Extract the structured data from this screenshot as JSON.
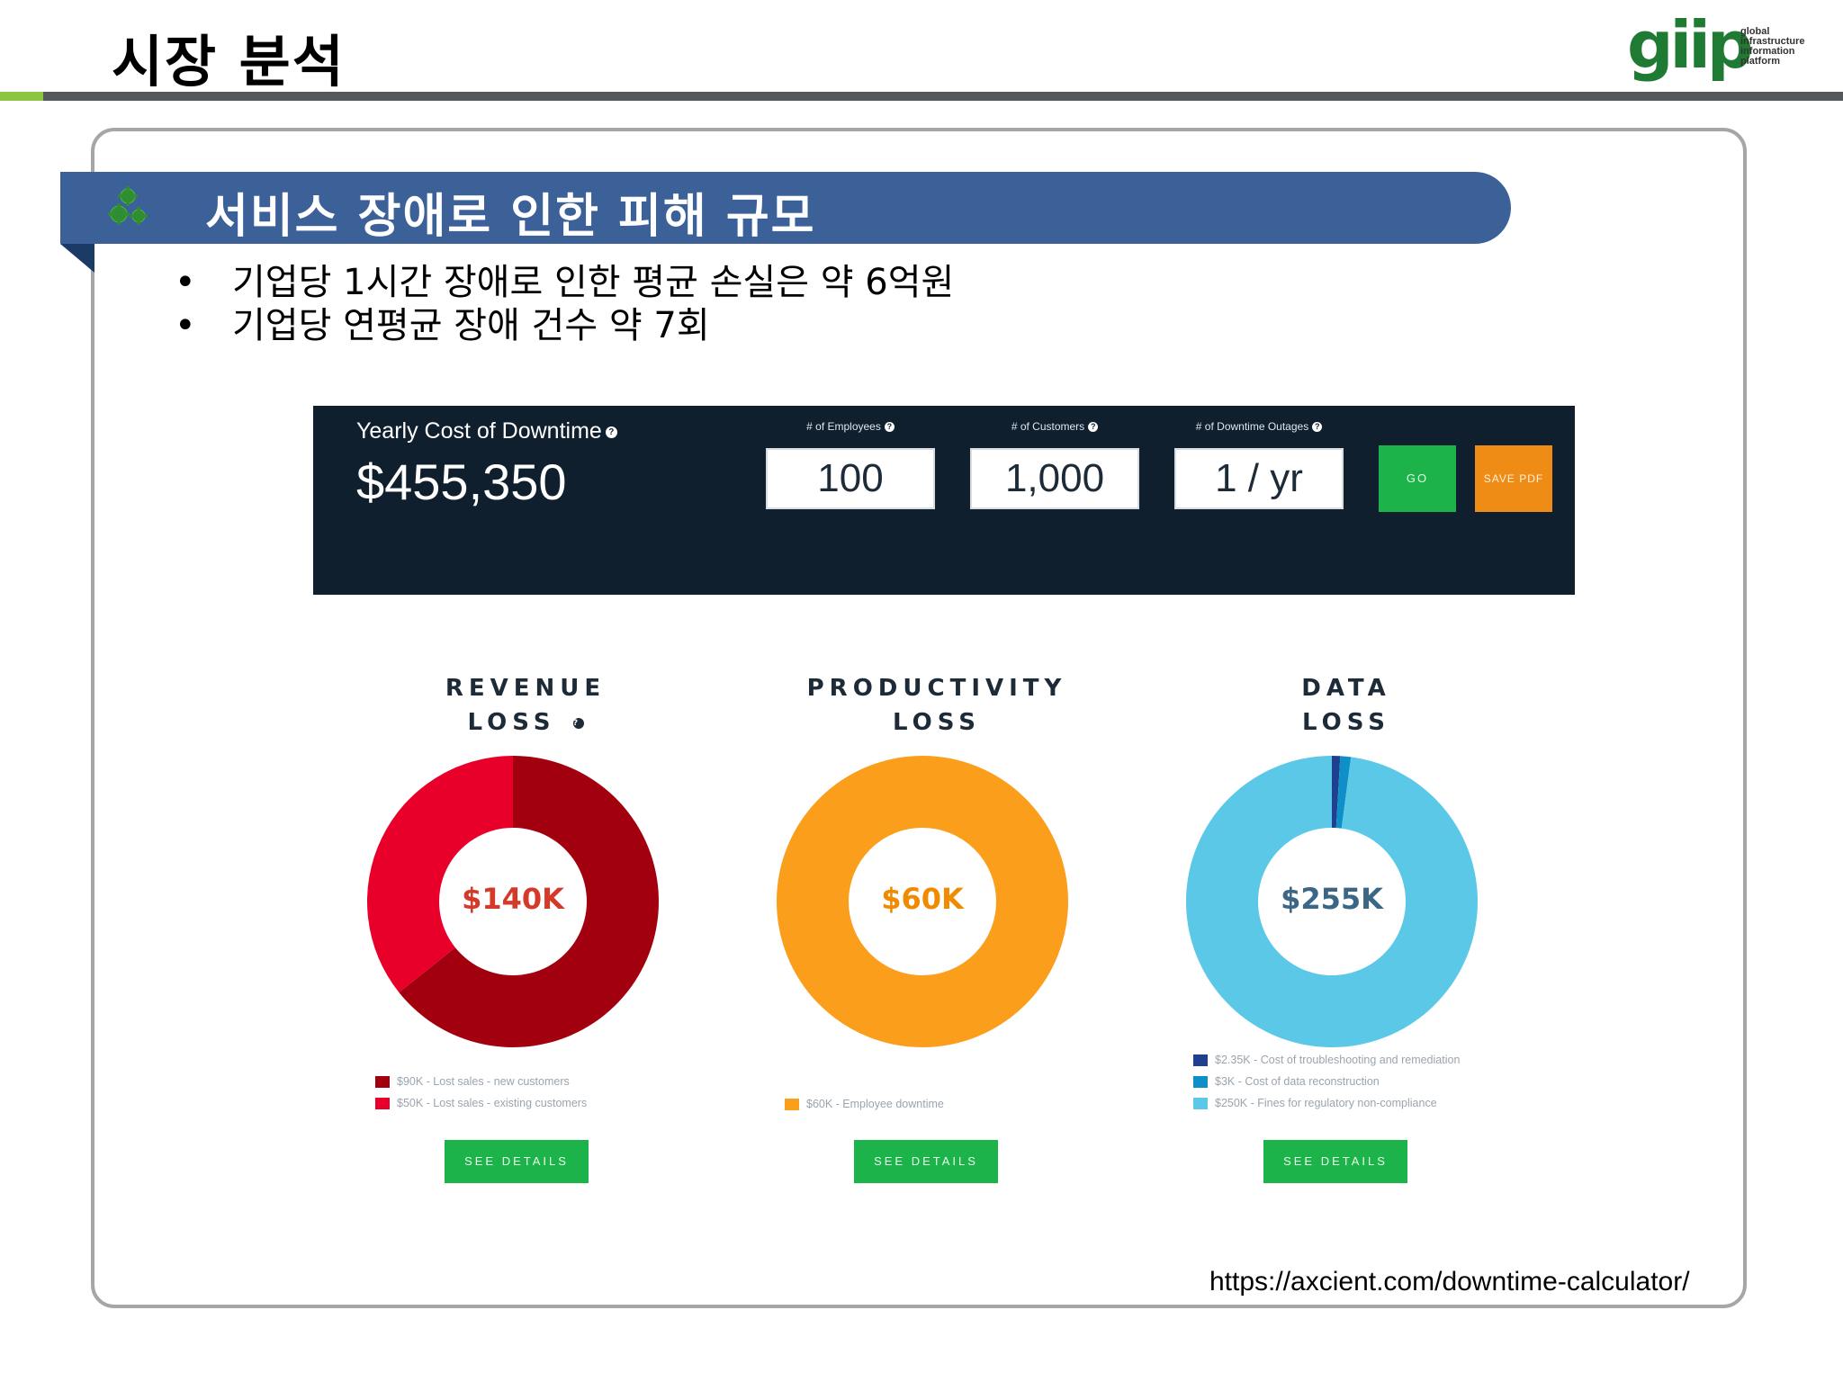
{
  "header": {
    "title": "시장 분석",
    "logo_word": "giip",
    "logo_tagline": [
      "global",
      "infrastructure",
      "information",
      "platform"
    ]
  },
  "section": {
    "title": "서비스 장애로 인한 피해 규모",
    "bullets": [
      "기업당 1시간 장애로 인한 평균 손실은 약 6억원",
      "기업당 연평균 장애 건수 약 7회"
    ]
  },
  "calculator": {
    "label": "Yearly Cost of Downtime",
    "total": "$455,350",
    "fields": [
      {
        "label": "# of Employees",
        "value": "100"
      },
      {
        "label": "# of Customers",
        "value": "1,000"
      },
      {
        "label": "# of Downtime Outages",
        "value": "1 / yr"
      }
    ],
    "go_label": "GO",
    "pdf_label": "SAVE PDF",
    "help_glyph": "?"
  },
  "chart_data": [
    {
      "type": "pie",
      "title_lines": [
        "REVENUE",
        "LOSS"
      ],
      "center_label": "$140K",
      "center_color": "#d43a2a",
      "slices": [
        {
          "label": "$90K - Lost sales - new customers",
          "value": 90,
          "color": "#a3000f"
        },
        {
          "label": "$50K - Lost sales - existing customers",
          "value": 50,
          "color": "#e8002a"
        }
      ],
      "button": "SEE DETAILS"
    },
    {
      "type": "pie",
      "title_lines": [
        "PRODUCTIVITY",
        "LOSS"
      ],
      "center_label": "$60K",
      "center_color": "#f08a00",
      "slices": [
        {
          "label": "$60K - Employee downtime",
          "value": 60,
          "color": "#fa9e1c"
        }
      ],
      "button": "SEE DETAILS"
    },
    {
      "type": "pie",
      "title_lines": [
        "DATA",
        "LOSS"
      ],
      "center_label": "$255K",
      "center_color": "#3c6686",
      "slices": [
        {
          "label": "$2.35K - Cost of troubleshooting and remediation",
          "value": 2.35,
          "color": "#1f3f8f"
        },
        {
          "label": "$3K - Cost of data reconstruction",
          "value": 3,
          "color": "#0f8fc8"
        },
        {
          "label": "$250K - Fines for regulatory non-compliance",
          "value": 250,
          "color": "#5bc8e8"
        }
      ],
      "button": "SEE DETAILS"
    }
  ],
  "footer": {
    "source_url": "https://axcient.com/downtime-calculator/"
  }
}
